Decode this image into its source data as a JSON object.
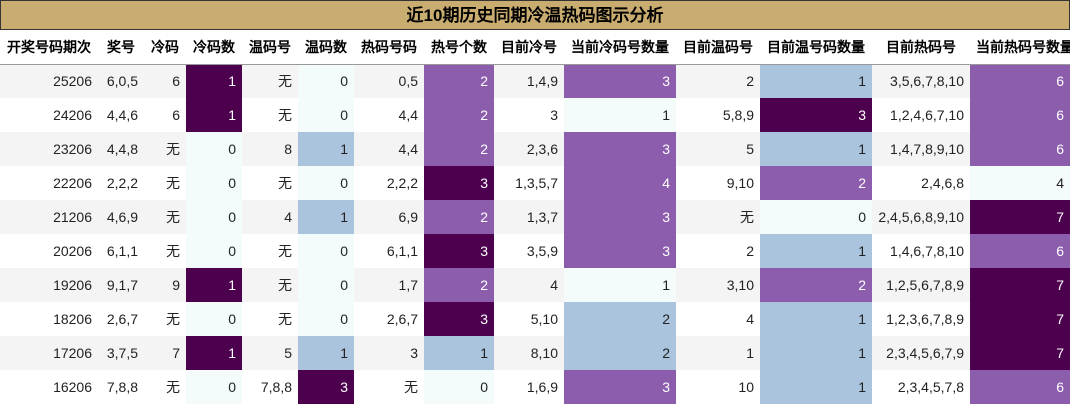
{
  "title": "近10期历史同期冷温热码图示分析",
  "colors": {
    "level0": "#f3fbfb",
    "level1": "#aac4de",
    "level2": "#8c5cad",
    "level3": "#4d004d",
    "title_bg": "#c9ac70"
  },
  "headers": [
    "开奖号码期次",
    "奖号",
    "冷码",
    "冷码数",
    "温码号",
    "温码数",
    "热码号码",
    "热号个数",
    "目前冷号",
    "当前冷码号数量",
    "目前温码号",
    "目前温号码数量",
    "目前热码号",
    "当前热码号数量"
  ],
  "rows": [
    [
      "25206",
      "6,0,5",
      "6",
      "1",
      "无",
      "0",
      "0,5",
      "2",
      "1,4,9",
      "3",
      "2",
      "1",
      "3,5,6,7,8,10",
      "6"
    ],
    [
      "24206",
      "4,4,6",
      "6",
      "1",
      "无",
      "0",
      "4,4",
      "2",
      "3",
      "1",
      "5,8,9",
      "3",
      "1,2,4,6,7,10",
      "6"
    ],
    [
      "23206",
      "4,4,8",
      "无",
      "0",
      "8",
      "1",
      "4,4",
      "2",
      "2,3,6",
      "3",
      "5",
      "1",
      "1,4,7,8,9,10",
      "6"
    ],
    [
      "22206",
      "2,2,2",
      "无",
      "0",
      "无",
      "0",
      "2,2,2",
      "3",
      "1,3,5,7",
      "4",
      "9,10",
      "2",
      "2,4,6,8",
      "4"
    ],
    [
      "21206",
      "4,6,9",
      "无",
      "0",
      "4",
      "1",
      "6,9",
      "2",
      "1,3,7",
      "3",
      "无",
      "0",
      "2,4,5,6,8,9,10",
      "7"
    ],
    [
      "20206",
      "6,1,1",
      "无",
      "0",
      "无",
      "0",
      "6,1,1",
      "3",
      "3,5,9",
      "3",
      "2",
      "1",
      "1,4,6,7,8,10",
      "6"
    ],
    [
      "19206",
      "9,1,7",
      "9",
      "1",
      "无",
      "0",
      "1,7",
      "2",
      "4",
      "1",
      "3,10",
      "2",
      "1,2,5,6,7,8,9",
      "7"
    ],
    [
      "18206",
      "2,6,7",
      "无",
      "0",
      "无",
      "0",
      "2,6,7",
      "3",
      "5,10",
      "2",
      "4",
      "1",
      "1,2,3,6,7,8,9",
      "7"
    ],
    [
      "17206",
      "3,7,5",
      "7",
      "1",
      "5",
      "1",
      "3",
      "1",
      "8,10",
      "2",
      "1",
      "1",
      "2,3,4,5,6,7,9",
      "7"
    ],
    [
      "16206",
      "7,8,8",
      "无",
      "0",
      "7,8,8",
      "3",
      "无",
      "0",
      "1,6,9",
      "3",
      "10",
      "1",
      "2,3,4,5,7,8",
      "6"
    ]
  ],
  "cell_levels": [
    [
      null,
      null,
      null,
      3,
      null,
      0,
      null,
      2,
      null,
      2,
      null,
      1,
      null,
      2
    ],
    [
      null,
      null,
      null,
      3,
      null,
      0,
      null,
      2,
      null,
      0,
      null,
      3,
      null,
      2
    ],
    [
      null,
      null,
      null,
      0,
      null,
      1,
      null,
      2,
      null,
      2,
      null,
      1,
      null,
      2
    ],
    [
      null,
      null,
      null,
      0,
      null,
      0,
      null,
      3,
      null,
      2,
      null,
      2,
      null,
      0
    ],
    [
      null,
      null,
      null,
      0,
      null,
      1,
      null,
      2,
      null,
      2,
      null,
      0,
      null,
      3
    ],
    [
      null,
      null,
      null,
      0,
      null,
      0,
      null,
      3,
      null,
      2,
      null,
      1,
      null,
      2
    ],
    [
      null,
      null,
      null,
      3,
      null,
      0,
      null,
      2,
      null,
      0,
      null,
      2,
      null,
      3
    ],
    [
      null,
      null,
      null,
      0,
      null,
      0,
      null,
      3,
      null,
      1,
      null,
      1,
      null,
      3
    ],
    [
      null,
      null,
      null,
      3,
      null,
      1,
      null,
      1,
      null,
      1,
      null,
      1,
      null,
      3
    ],
    [
      null,
      null,
      null,
      0,
      null,
      3,
      null,
      0,
      null,
      2,
      null,
      1,
      null,
      2
    ]
  ]
}
